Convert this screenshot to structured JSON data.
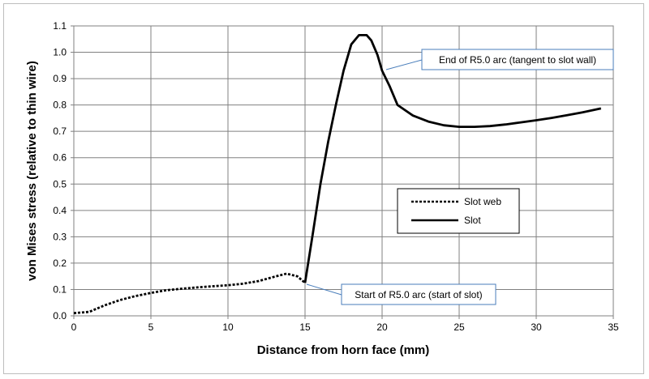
{
  "chart_data": {
    "type": "line",
    "title": "",
    "xlabel": "Distance from horn face (mm)",
    "ylabel": "von Mises stress (relative to thin wire)",
    "xlim": [
      0,
      35
    ],
    "ylim": [
      0,
      1.1
    ],
    "x_ticks": [
      "0",
      "5",
      "10",
      "15",
      "20",
      "25",
      "30",
      "35"
    ],
    "y_ticks": [
      "0.0",
      "0.1",
      "0.2",
      "0.3",
      "0.4",
      "0.5",
      "0.6",
      "0.7",
      "0.8",
      "0.9",
      "1.0",
      "1.1"
    ],
    "grid": true,
    "legend_position": "center-right",
    "series": [
      {
        "name": "Slot web",
        "style": "dotted",
        "color": "#000000",
        "x": [
          0,
          1,
          2,
          3,
          4,
          5,
          6,
          7,
          8,
          9,
          10,
          11,
          12,
          13,
          13.8,
          14.5,
          15
        ],
        "y": [
          0.01,
          0.015,
          0.04,
          0.06,
          0.075,
          0.087,
          0.097,
          0.103,
          0.108,
          0.112,
          0.116,
          0.122,
          0.132,
          0.148,
          0.16,
          0.15,
          0.125
        ]
      },
      {
        "name": "Slot",
        "style": "solid",
        "color": "#000000",
        "x": [
          15,
          15.5,
          16,
          16.5,
          17,
          17.5,
          18,
          18.5,
          19,
          19.3,
          19.7,
          20,
          20.5,
          21,
          22,
          23,
          24,
          25,
          26,
          27,
          28,
          29,
          30,
          31,
          32,
          33,
          34.2
        ],
        "y": [
          0.125,
          0.31,
          0.5,
          0.66,
          0.8,
          0.93,
          1.03,
          1.065,
          1.065,
          1.045,
          0.99,
          0.93,
          0.87,
          0.8,
          0.76,
          0.737,
          0.723,
          0.717,
          0.717,
          0.72,
          0.726,
          0.734,
          0.742,
          0.751,
          0.761,
          0.772,
          0.787
        ]
      }
    ],
    "annotations": [
      {
        "text": "End of R5.0 arc (tangent to slot wall)",
        "x": 19.3,
        "y": 1.01
      },
      {
        "text": "Start of R5.0 arc (start of slot)",
        "x": 15.1,
        "y": 0.12
      }
    ]
  }
}
